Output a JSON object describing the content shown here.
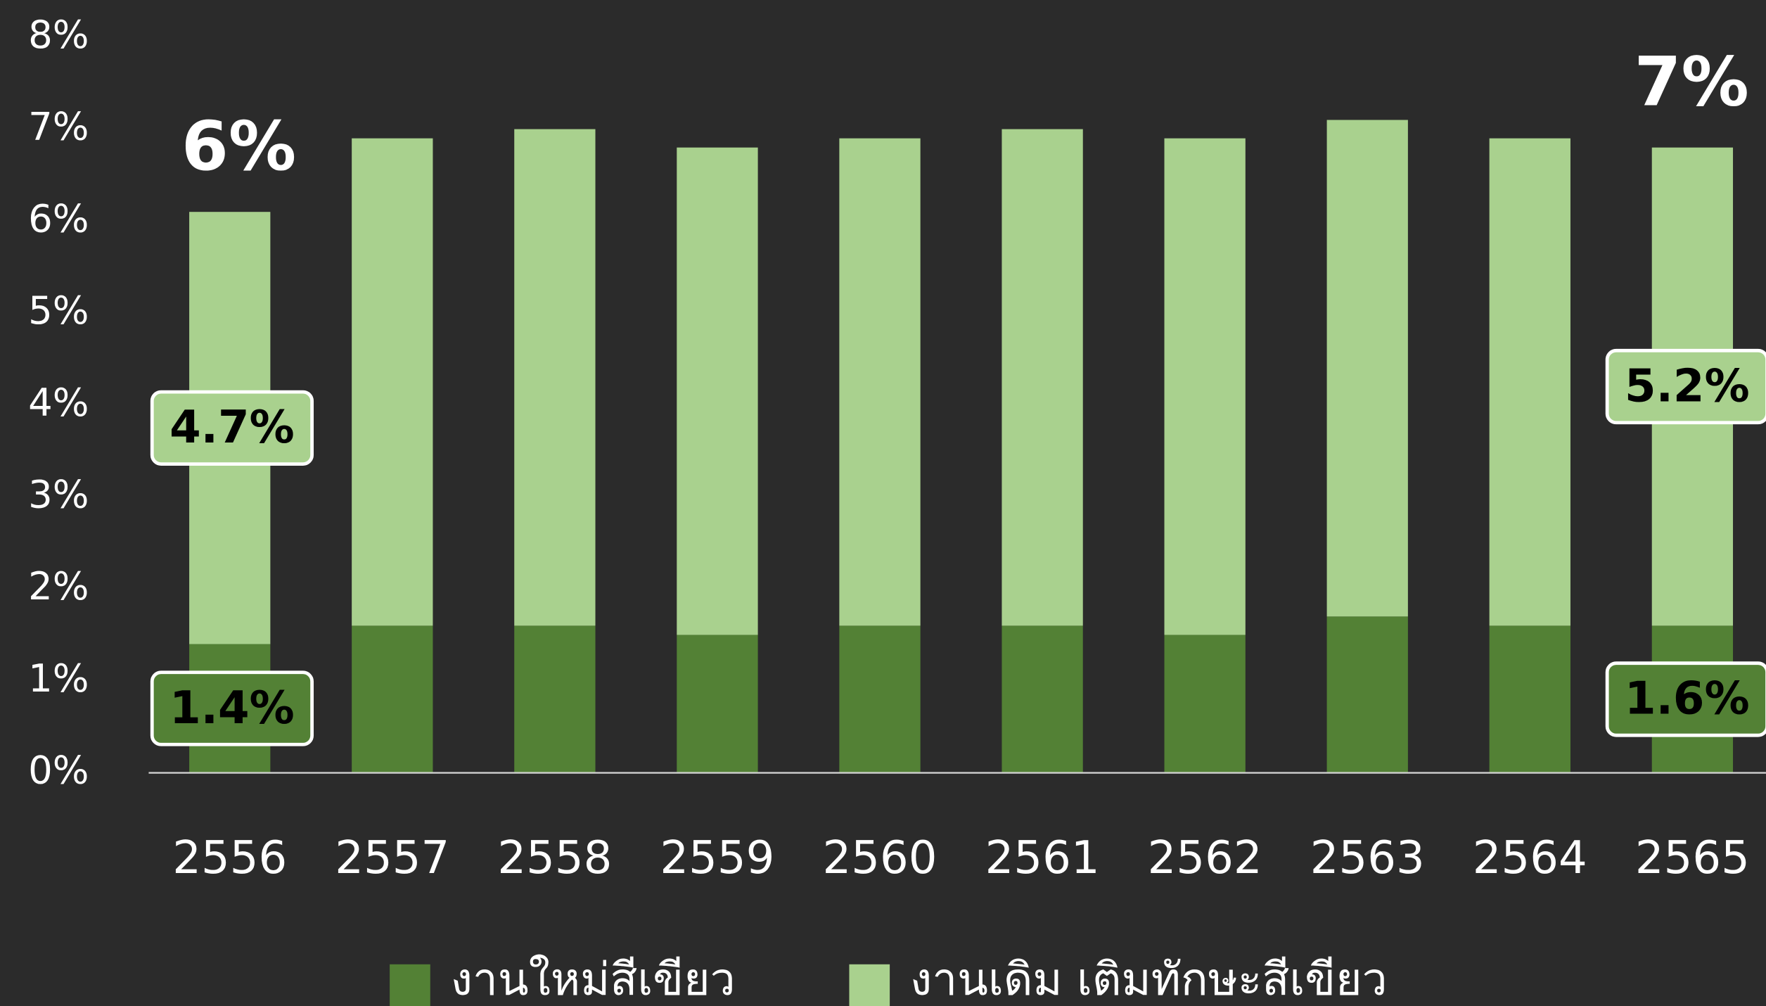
{
  "chart_data": {
    "type": "stacked_bar",
    "categories": [
      "2556",
      "2557",
      "2558",
      "2559",
      "2560",
      "2561",
      "2562",
      "2563",
      "2564",
      "2565"
    ],
    "series": [
      {
        "name": "งานใหม่สีเขียว",
        "color": "#538135",
        "values": [
          1.4,
          1.6,
          1.6,
          1.5,
          1.6,
          1.6,
          1.5,
          1.7,
          1.6,
          1.6
        ],
        "value_labels": [
          "1.4%",
          null,
          null,
          null,
          null,
          null,
          null,
          null,
          null,
          "1.6%"
        ]
      },
      {
        "name": "งานเดิม เติมทักษะสีเขียว",
        "color": "#a9d18e",
        "values": [
          4.7,
          5.3,
          5.4,
          5.3,
          5.3,
          5.4,
          5.4,
          5.4,
          5.3,
          5.2
        ],
        "value_labels": [
          "4.7%",
          null,
          null,
          null,
          null,
          null,
          null,
          null,
          null,
          "5.2%"
        ]
      }
    ],
    "total_labels": [
      "6%",
      null,
      null,
      null,
      null,
      null,
      null,
      null,
      null,
      "7%"
    ],
    "ylim": [
      0,
      8
    ],
    "yticks": [
      {
        "value": 0,
        "label": "0%"
      },
      {
        "value": 1,
        "label": "1%"
      },
      {
        "value": 2,
        "label": "2%"
      },
      {
        "value": 3,
        "label": "3%"
      },
      {
        "value": 4,
        "label": "4%"
      },
      {
        "value": 5,
        "label": "5%"
      },
      {
        "value": 6,
        "label": "6%"
      },
      {
        "value": 7,
        "label": "7%"
      },
      {
        "value": 8,
        "label": "8%"
      }
    ],
    "background": "#2b2b2b"
  }
}
